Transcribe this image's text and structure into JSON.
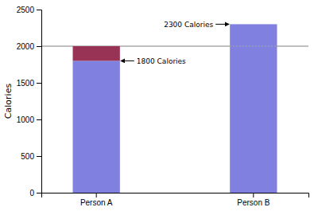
{
  "chart_data": {
    "type": "bar",
    "stacked": true,
    "categories": [
      "Person A",
      "Person B"
    ],
    "series": [
      {
        "color": "#8080e0",
        "values": [
          1800,
          2300
        ]
      },
      {
        "color": "#993355",
        "values": [
          200,
          0
        ]
      }
    ],
    "ylabel": "Calories",
    "ylim": [
      0,
      2500
    ],
    "yticks": [
      0,
      500,
      1000,
      1500,
      2000,
      2500
    ],
    "grid": false,
    "reference_lines": [
      {
        "y": 2000,
        "color": "#808080",
        "line_style": "solid"
      },
      {
        "y": 2000,
        "category": "Person B",
        "color": "#aaaaaa",
        "line_style": "dotted"
      }
    ],
    "annotations": [
      {
        "text": "1800 Calories",
        "category": "Person A",
        "y": 1800
      },
      {
        "text": "2300 Calories",
        "category": "Person B",
        "y": 2300
      }
    ]
  }
}
